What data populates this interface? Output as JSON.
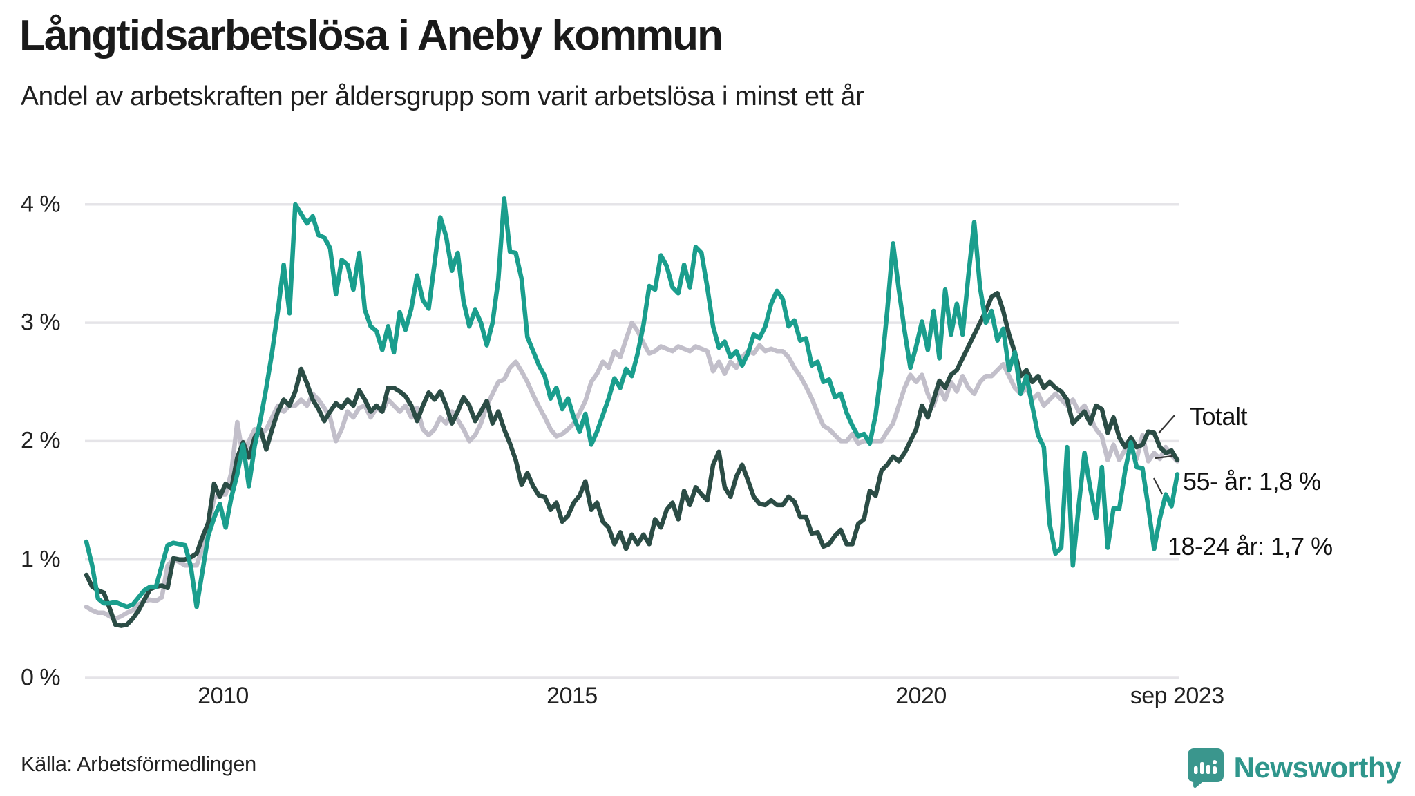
{
  "title": "Långtidsarbetslösa i Aneby kommun",
  "subtitle": "Andel av arbetskraften per åldersgrupp som varit arbetslösa i minst ett år",
  "source": "Källa: Arbetsförmedlingen",
  "branding": {
    "name": "Newsworthy",
    "text_color": "#2f968c",
    "icon_color": "#3a968d"
  },
  "colors": {
    "background": "#ffffff",
    "gridline": "#e5e4e8",
    "title_text": "#1a1a1a",
    "tick_text": "#222222",
    "leader_line": "#333333"
  },
  "chart_data": {
    "type": "line",
    "title": "Långtidsarbetslösa i Aneby kommun",
    "subtitle": "Andel av arbetskraften per åldersgrupp som varit arbetslösa i minst ett år",
    "unit": "% av arbetskraften",
    "frequency": "monthly",
    "x_start": "2008-01",
    "x_end": "2023-09",
    "x_ticks": [
      {
        "label": "2010",
        "year": 2010.0
      },
      {
        "label": "2015",
        "year": 2015.0
      },
      {
        "label": "2020",
        "year": 2020.0
      },
      {
        "label": "sep 2023",
        "year": 2023.67
      }
    ],
    "y_ticks": [
      {
        "label": "0 %",
        "value": 0
      },
      {
        "label": "1 %",
        "value": 1
      },
      {
        "label": "2 %",
        "value": 2
      },
      {
        "label": "3 %",
        "value": 3
      },
      {
        "label": "4 %",
        "value": 4
      }
    ],
    "ylim": [
      0,
      4.3
    ],
    "grid": "horizontal",
    "legend_position": "end-of-line-labels",
    "series": [
      {
        "name": "Totalt",
        "end_label": "Totalt",
        "color": "#c2bfca",
        "values": [
          0.6,
          0.57,
          0.55,
          0.55,
          0.52,
          0.5,
          0.52,
          0.55,
          0.57,
          0.62,
          0.65,
          0.66,
          0.65,
          0.68,
          0.95,
          1.0,
          0.98,
          0.95,
          0.95,
          0.95,
          1.1,
          1.25,
          1.52,
          1.55,
          1.55,
          1.74,
          2.16,
          1.86,
          2.0,
          2.1,
          2.05,
          2.1,
          2.2,
          2.3,
          2.25,
          2.3,
          2.3,
          2.35,
          2.3,
          2.4,
          2.35,
          2.28,
          2.2,
          2.0,
          2.1,
          2.25,
          2.2,
          2.28,
          2.3,
          2.2,
          2.28,
          2.25,
          2.35,
          2.3,
          2.25,
          2.3,
          2.2,
          2.28,
          2.1,
          2.05,
          2.1,
          2.2,
          2.15,
          2.25,
          2.18,
          2.1,
          2.0,
          2.05,
          2.15,
          2.3,
          2.4,
          2.5,
          2.52,
          2.62,
          2.67,
          2.59,
          2.5,
          2.39,
          2.29,
          2.2,
          2.1,
          2.04,
          2.06,
          2.1,
          2.15,
          2.24,
          2.34,
          2.5,
          2.57,
          2.67,
          2.62,
          2.76,
          2.71,
          2.86,
          3.0,
          2.93,
          2.83,
          2.74,
          2.76,
          2.8,
          2.78,
          2.76,
          2.8,
          2.78,
          2.76,
          2.8,
          2.78,
          2.76,
          2.59,
          2.67,
          2.57,
          2.67,
          2.62,
          2.71,
          2.76,
          2.74,
          2.81,
          2.76,
          2.78,
          2.76,
          2.76,
          2.71,
          2.62,
          2.55,
          2.46,
          2.36,
          2.24,
          2.13,
          2.1,
          2.05,
          2.0,
          2.0,
          2.06,
          1.98,
          2.0,
          2.0,
          2.0,
          2.0,
          2.08,
          2.15,
          2.3,
          2.45,
          2.56,
          2.5,
          2.56,
          2.4,
          2.3,
          2.45,
          2.35,
          2.5,
          2.42,
          2.55,
          2.45,
          2.4,
          2.5,
          2.55,
          2.55,
          2.6,
          2.65,
          2.55,
          2.45,
          2.4,
          2.45,
          2.35,
          2.4,
          2.3,
          2.35,
          2.4,
          2.35,
          2.3,
          2.35,
          2.25,
          2.3,
          2.2,
          2.1,
          2.04,
          1.84,
          1.97,
          1.84,
          1.93,
          1.93,
          1.85,
          2.05,
          1.83,
          1.9,
          1.85,
          1.95,
          1.88,
          1.83
        ]
      },
      {
        "name": "55- år",
        "end_label": "55- år: 1,8 %",
        "color": "#2b4c45",
        "values": [
          0.87,
          0.77,
          0.74,
          0.72,
          0.59,
          0.45,
          0.44,
          0.45,
          0.5,
          0.57,
          0.66,
          0.75,
          0.77,
          0.78,
          0.76,
          1.01,
          1.0,
          1.0,
          1.02,
          1.05,
          1.19,
          1.31,
          1.64,
          1.53,
          1.64,
          1.6,
          1.86,
          1.99,
          1.86,
          2.03,
          2.1,
          1.93,
          2.1,
          2.25,
          2.35,
          2.3,
          2.42,
          2.61,
          2.49,
          2.35,
          2.27,
          2.17,
          2.25,
          2.32,
          2.28,
          2.35,
          2.3,
          2.43,
          2.35,
          2.25,
          2.3,
          2.25,
          2.45,
          2.45,
          2.42,
          2.38,
          2.3,
          2.17,
          2.3,
          2.41,
          2.35,
          2.42,
          2.3,
          2.15,
          2.25,
          2.37,
          2.3,
          2.17,
          2.25,
          2.34,
          2.15,
          2.25,
          2.1,
          1.98,
          1.84,
          1.63,
          1.73,
          1.62,
          1.54,
          1.53,
          1.42,
          1.48,
          1.32,
          1.37,
          1.48,
          1.54,
          1.66,
          1.42,
          1.48,
          1.32,
          1.27,
          1.13,
          1.23,
          1.09,
          1.21,
          1.13,
          1.21,
          1.13,
          1.34,
          1.27,
          1.42,
          1.48,
          1.34,
          1.58,
          1.46,
          1.61,
          1.55,
          1.5,
          1.8,
          1.91,
          1.61,
          1.53,
          1.7,
          1.8,
          1.67,
          1.53,
          1.47,
          1.46,
          1.5,
          1.46,
          1.46,
          1.53,
          1.49,
          1.36,
          1.36,
          1.22,
          1.23,
          1.11,
          1.13,
          1.2,
          1.25,
          1.13,
          1.13,
          1.3,
          1.34,
          1.58,
          1.54,
          1.75,
          1.8,
          1.87,
          1.83,
          1.9,
          2.0,
          2.1,
          2.3,
          2.2,
          2.35,
          2.51,
          2.45,
          2.56,
          2.6,
          2.7,
          2.8,
          2.9,
          3.0,
          3.1,
          3.22,
          3.25,
          3.1,
          2.9,
          2.75,
          2.55,
          2.6,
          2.5,
          2.55,
          2.45,
          2.5,
          2.45,
          2.42,
          2.35,
          2.15,
          2.2,
          2.25,
          2.15,
          2.3,
          2.27,
          2.07,
          2.2,
          2.03,
          1.95,
          2.03,
          1.95,
          1.97,
          2.08,
          2.07,
          1.95,
          1.9,
          1.92,
          1.84
        ]
      },
      {
        "name": "18-24 år",
        "end_label": "18-24 år: 1,7 %",
        "color": "#1a9e8d",
        "values": [
          1.15,
          0.95,
          0.67,
          0.63,
          0.63,
          0.64,
          0.62,
          0.6,
          0.62,
          0.68,
          0.74,
          0.77,
          0.77,
          0.95,
          1.12,
          1.14,
          1.13,
          1.12,
          0.94,
          0.6,
          0.9,
          1.2,
          1.35,
          1.47,
          1.27,
          1.53,
          1.72,
          1.97,
          1.62,
          1.96,
          2.18,
          2.45,
          2.75,
          3.1,
          3.49,
          3.08,
          4.0,
          3.92,
          3.84,
          3.9,
          3.74,
          3.72,
          3.63,
          3.24,
          3.53,
          3.49,
          3.28,
          3.59,
          3.11,
          2.97,
          2.93,
          2.77,
          2.97,
          2.75,
          3.09,
          2.94,
          3.12,
          3.4,
          3.19,
          3.12,
          3.5,
          3.89,
          3.73,
          3.44,
          3.59,
          3.18,
          2.97,
          3.11,
          3.0,
          2.81,
          3.0,
          3.37,
          4.05,
          3.6,
          3.59,
          3.37,
          2.88,
          2.76,
          2.64,
          2.55,
          2.36,
          2.45,
          2.27,
          2.36,
          2.2,
          2.08,
          2.23,
          1.97,
          2.08,
          2.22,
          2.36,
          2.53,
          2.45,
          2.61,
          2.55,
          2.74,
          2.98,
          3.31,
          3.28,
          3.57,
          3.48,
          3.3,
          3.25,
          3.49,
          3.3,
          3.64,
          3.59,
          3.3,
          2.97,
          2.79,
          2.84,
          2.71,
          2.76,
          2.64,
          2.74,
          2.9,
          2.87,
          2.97,
          3.16,
          3.27,
          3.2,
          2.97,
          3.02,
          2.85,
          2.87,
          2.64,
          2.67,
          2.5,
          2.52,
          2.37,
          2.4,
          2.24,
          2.13,
          2.04,
          2.06,
          1.98,
          2.22,
          2.6,
          3.1,
          3.67,
          3.28,
          2.93,
          2.62,
          2.8,
          3.01,
          2.77,
          3.1,
          2.7,
          3.28,
          2.9,
          3.16,
          2.9,
          3.4,
          3.85,
          3.3,
          3.0,
          3.1,
          2.85,
          2.95,
          2.6,
          2.75,
          2.4,
          2.55,
          2.3,
          2.05,
          1.95,
          1.3,
          1.05,
          1.1,
          1.95,
          0.95,
          1.45,
          1.9,
          1.6,
          1.35,
          1.78,
          1.1,
          1.43,
          1.43,
          1.75,
          1.99,
          1.78,
          1.77,
          1.44,
          1.09,
          1.35,
          1.55,
          1.45,
          1.72
        ]
      }
    ],
    "annotations": [
      {
        "text": "Totalt",
        "series": "Totalt"
      },
      {
        "text": "55- år: 1,8 %",
        "series": "55- år"
      },
      {
        "text": "18-24 år: 1,7 %",
        "series": "18-24 år"
      }
    ]
  }
}
